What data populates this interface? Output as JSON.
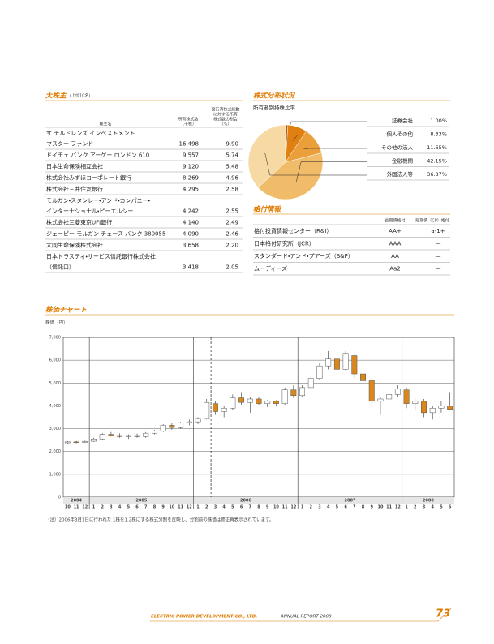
{
  "shareholders": {
    "title": "大株主",
    "subtitle": "(上位10名)",
    "columns": [
      [
        "株主名"
      ],
      [
        "所有株式数",
        "（千株）"
      ],
      [
        "発行済株式総数",
        "に対する所有",
        "株式数の割合",
        "（%）"
      ]
    ],
    "rows": [
      {
        "name": [
          "ザ チルドレンズ インベストメント",
          "マスター ファンド"
        ],
        "shares": "16,498",
        "ratio": "9.90"
      },
      {
        "name": [
          "ドイチェ バンク アーゲー ロンドン 610"
        ],
        "shares": "9,557",
        "ratio": "5.74"
      },
      {
        "name": [
          "日本生命保険相互会社"
        ],
        "shares": "9,120",
        "ratio": "5.48"
      },
      {
        "name": [
          "株式会社みずほコーポレート銀行"
        ],
        "shares": "8,269",
        "ratio": "4.96"
      },
      {
        "name": [
          "株式会社三井住友銀行"
        ],
        "shares": "4,295",
        "ratio": "2.58"
      },
      {
        "name": [
          "モルガン・スタンレー・アンド・カンパニー・",
          "インターナショナル・ピーエルシー"
        ],
        "shares": "4,242",
        "ratio": "2.55"
      },
      {
        "name": [
          "株式会社三菱東京UFJ銀行"
        ],
        "shares": "4,140",
        "ratio": "2.49"
      },
      {
        "name": [
          "ジェーピー モルガン チェース バンク 380055"
        ],
        "shares": "4,090",
        "ratio": "2.46"
      },
      {
        "name": [
          "大同生命保険株式会社"
        ],
        "shares": "3,658",
        "ratio": "2.20"
      },
      {
        "name": [
          "日本トラスティ・サービス信託銀行株式会社",
          "（信託口）"
        ],
        "shares": "3,418",
        "ratio": "2.05"
      }
    ]
  },
  "ratings": {
    "title": "格付情報",
    "columns": [
      "長期債格付",
      "短期債（CP）格付"
    ],
    "rows": [
      {
        "agency": "格付投資情報センター（R&I）",
        "long": "AA+",
        "short": "a-1+"
      },
      {
        "agency": "日本格付研究所（JCR）",
        "long": "AAA",
        "short": "—"
      },
      {
        "agency": "スタンダード・アンド・プアーズ（S&P）",
        "long": "AA",
        "short": "—"
      },
      {
        "agency": "ムーディーズ",
        "long": "Aa2",
        "short": "—"
      }
    ]
  },
  "chart_data": [
    {
      "type": "pie",
      "title": "株式分布状況",
      "subtitle": "所有者別持株比率",
      "categories": [
        "証券会社",
        "個人その他",
        "その他の法人",
        "金融機関",
        "外国法人等"
      ],
      "values": [
        1.0,
        8.33,
        11.65,
        42.15,
        36.87
      ],
      "value_labels": [
        "1.00%",
        "8.33%",
        "11.65%",
        "42.15%",
        "36.87%"
      ],
      "colors": [
        "#b85a08",
        "#e07f12",
        "#eb9f3a",
        "#f1bc6a",
        "#f6d9a3"
      ]
    },
    {
      "type": "candlestick",
      "title": "株価チャート",
      "y_label": "株価（円）",
      "years": [
        {
          "label": "2004",
          "months": [
            "10",
            "11",
            "12"
          ]
        },
        {
          "label": "2005",
          "months": [
            "1",
            "2",
            "3",
            "4",
            "5",
            "6",
            "7",
            "8",
            "9",
            "10",
            "11",
            "12"
          ]
        },
        {
          "label": "2006",
          "months": [
            "1",
            "2",
            "3",
            "4",
            "5",
            "6",
            "7",
            "8",
            "9",
            "10",
            "11",
            "12"
          ]
        },
        {
          "label": "2007",
          "months": [
            "1",
            "2",
            "3",
            "4",
            "5",
            "6",
            "7",
            "8",
            "9",
            "10",
            "11",
            "12"
          ]
        },
        {
          "label": "2008",
          "months": [
            "1",
            "2",
            "3",
            "4",
            "5",
            "6"
          ]
        }
      ],
      "open": [
        2380,
        2420,
        2400,
        2450,
        2550,
        2750,
        2700,
        2650,
        2700,
        2650,
        2800,
        2900,
        3150,
        3050,
        3250,
        3300,
        3450,
        4100,
        3750,
        3900,
        4350,
        4150,
        4300,
        4100,
        4200,
        4100,
        4700,
        4450,
        4800,
        5200,
        5750,
        6050,
        5600,
        6200,
        5400,
        5100,
        4200,
        4300,
        4500,
        4700,
        4100,
        4200,
        3700,
        3900,
        4000
      ],
      "high": [
        2450,
        2460,
        2480,
        2600,
        2800,
        2850,
        2800,
        2750,
        2780,
        2850,
        2950,
        3200,
        3250,
        3300,
        3400,
        3500,
        4300,
        4200,
        4000,
        4500,
        4600,
        4400,
        4400,
        4250,
        4250,
        4800,
        4900,
        4900,
        5300,
        5900,
        6400,
        6700,
        6400,
        6300,
        5600,
        5200,
        4400,
        4600,
        4900,
        4800,
        4300,
        4300,
        4000,
        4200,
        4600
      ],
      "low": [
        2330,
        2360,
        2380,
        2420,
        2500,
        2650,
        2600,
        2550,
        2600,
        2600,
        2750,
        2850,
        2950,
        3000,
        3150,
        3200,
        3400,
        3600,
        3500,
        3800,
        4050,
        3700,
        4050,
        3950,
        4000,
        4050,
        4350,
        4400,
        4750,
        5150,
        5600,
        5500,
        5550,
        5200,
        4900,
        4000,
        3600,
        4150,
        4400,
        3900,
        3800,
        3500,
        3400,
        3700,
        3800
      ],
      "close": [
        2420,
        2400,
        2440,
        2550,
        2750,
        2700,
        2650,
        2700,
        2650,
        2800,
        2900,
        3150,
        3050,
        3250,
        3300,
        3450,
        4150,
        3750,
        3900,
        4350,
        4150,
        4300,
        4100,
        4200,
        4100,
        4700,
        4450,
        4800,
        5200,
        5750,
        6050,
        5600,
        6300,
        5400,
        5100,
        4200,
        4300,
        4500,
        4750,
        4100,
        4200,
        3700,
        3900,
        4000,
        3850
      ],
      "ylim": [
        0,
        7000
      ],
      "yticks": [
        0,
        {
          "value": 1000,
          "label": "1,000"
        },
        {
          "value": 2000,
          "label": "2,000"
        },
        {
          "value": 3000,
          "label": "3,000"
        },
        {
          "value": 4000,
          "label": "4,000"
        },
        {
          "value": 5000,
          "label": "5,000"
        },
        {
          "value": 6000,
          "label": "6,000"
        },
        {
          "value": 7000,
          "label": "7,000"
        }
      ],
      "grid": true,
      "up_color": "#ffffff",
      "down_color": "#d9861c",
      "note": "（注）2006年3月1日に行われた 1株を1.2株にする株式分割を反映し、分割前の株価は修正再表示されています。"
    }
  ],
  "footer": {
    "company": "ELECTRIC POWER DEVELOPMENT CO., LTD.",
    "report": "ANNUAL REPORT 2008",
    "page": "73"
  }
}
